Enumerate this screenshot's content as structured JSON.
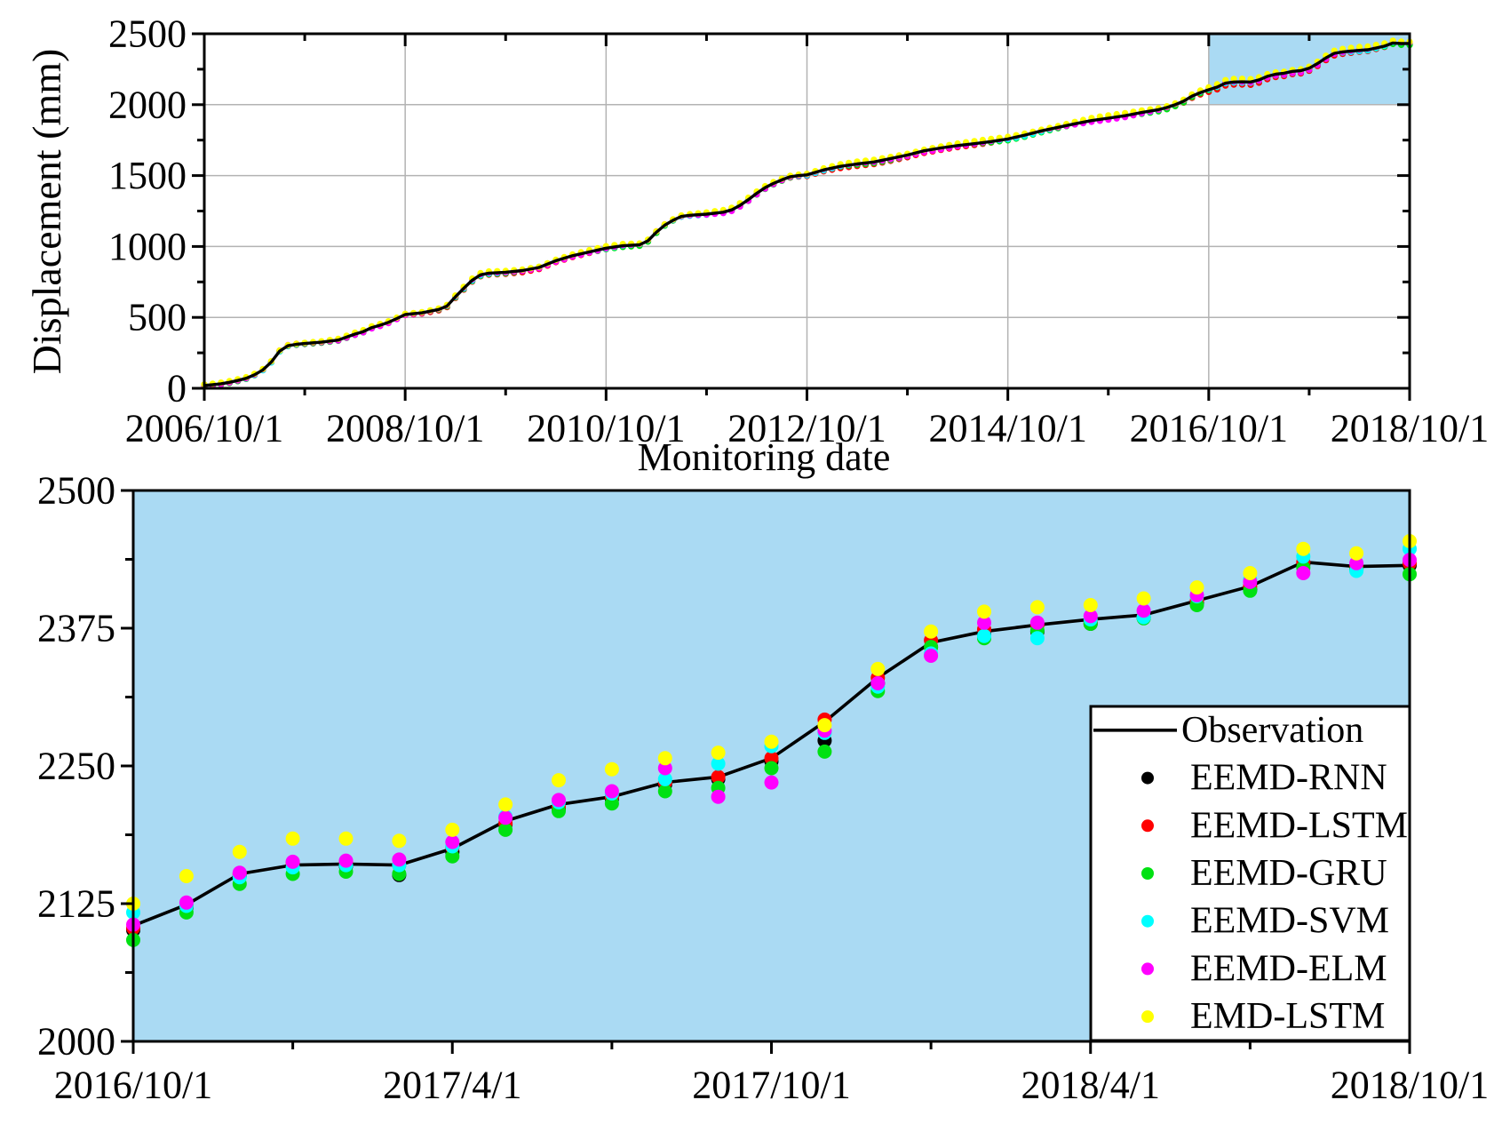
{
  "colors": {
    "background": "#ffffff",
    "highlight_blue": "#aadaf3",
    "axis_black": "#000000",
    "grid_gray": "#b3b3b3",
    "legend_background": "#ffffff",
    "observation": "#000000",
    "eemd_rnn": "#000000",
    "eemd_lstm": "#ff0000",
    "eemd_gru": "#00e112",
    "eemd_svm": "#00ffff",
    "eemd_elm": "#ff00ff",
    "emd_lstm": "#ffff00"
  },
  "legend": {
    "position": "bottom-right-inside",
    "entries": [
      {
        "label": "Observation",
        "marker": "line",
        "color": "#000000"
      },
      {
        "label": "EEMD-RNN",
        "marker": "dot",
        "color": "#000000"
      },
      {
        "label": "EEMD-LSTM",
        "marker": "dot",
        "color": "#ff0000"
      },
      {
        "label": "EEMD-GRU",
        "marker": "dot",
        "color": "#00e112"
      },
      {
        "label": "EEMD-SVM",
        "marker": "dot",
        "color": "#00ffff"
      },
      {
        "label": "EEMD-ELM",
        "marker": "dot",
        "color": "#ff00ff"
      },
      {
        "label": "EMD-LSTM",
        "marker": "dot",
        "color": "#ffff00"
      }
    ]
  },
  "chart_data": [
    {
      "type": "line",
      "panel": "overview",
      "xlabel": "Monitoring date",
      "ylabel": "Displacement (mm)",
      "ylim": [
        0,
        2500
      ],
      "y_ticks": [
        0,
        500,
        1000,
        1500,
        2000,
        2500
      ],
      "y_minor_step": 250,
      "xlim_months": [
        0,
        144
      ],
      "x_tick_months": [
        0,
        24,
        48,
        72,
        96,
        120,
        144
      ],
      "x_tick_labels": [
        "2006/10/1",
        "2008/10/1",
        "2010/10/1",
        "2012/10/1",
        "2014/10/1",
        "2016/10/1",
        "2018/10/1"
      ],
      "x_minor_step_months": 12,
      "grid": true,
      "highlight_window": {
        "x_months": [
          120,
          144
        ],
        "y": [
          2000,
          2500
        ],
        "color": "#aadaf3"
      },
      "observation_knots_month_value": [
        [
          0,
          20
        ],
        [
          1,
          25
        ],
        [
          2,
          32
        ],
        [
          3,
          42
        ],
        [
          4,
          55
        ],
        [
          5,
          70
        ],
        [
          6,
          95
        ],
        [
          7,
          130
        ],
        [
          8,
          185
        ],
        [
          9,
          262
        ],
        [
          10,
          300
        ],
        [
          11,
          310
        ],
        [
          12,
          316
        ],
        [
          14,
          325
        ],
        [
          16,
          340
        ],
        [
          18,
          382
        ],
        [
          19,
          400
        ],
        [
          20,
          428
        ],
        [
          21,
          445
        ],
        [
          22,
          465
        ],
        [
          23,
          492
        ],
        [
          24,
          520
        ],
        [
          26,
          532
        ],
        [
          28,
          556
        ],
        [
          29,
          580
        ],
        [
          30,
          645
        ],
        [
          31,
          705
        ],
        [
          32,
          762
        ],
        [
          33,
          800
        ],
        [
          34,
          812
        ],
        [
          36,
          818
        ],
        [
          38,
          830
        ],
        [
          40,
          852
        ],
        [
          42,
          900
        ],
        [
          44,
          935
        ],
        [
          46,
          962
        ],
        [
          48,
          988
        ],
        [
          50,
          1005
        ],
        [
          52,
          1012
        ],
        [
          53,
          1040
        ],
        [
          54,
          1100
        ],
        [
          55,
          1150
        ],
        [
          56,
          1185
        ],
        [
          57,
          1212
        ],
        [
          58,
          1220
        ],
        [
          60,
          1228
        ],
        [
          62,
          1242
        ],
        [
          63,
          1258
        ],
        [
          64,
          1290
        ],
        [
          65,
          1330
        ],
        [
          66,
          1375
        ],
        [
          67,
          1415
        ],
        [
          68,
          1445
        ],
        [
          69,
          1470
        ],
        [
          70,
          1492
        ],
        [
          71,
          1500
        ],
        [
          72,
          1505
        ],
        [
          74,
          1540
        ],
        [
          76,
          1565
        ],
        [
          78,
          1582
        ],
        [
          80,
          1596
        ],
        [
          82,
          1620
        ],
        [
          84,
          1645
        ],
        [
          86,
          1675
        ],
        [
          88,
          1695
        ],
        [
          90,
          1712
        ],
        [
          92,
          1725
        ],
        [
          94,
          1740
        ],
        [
          96,
          1758
        ],
        [
          98,
          1785
        ],
        [
          100,
          1815
        ],
        [
          102,
          1840
        ],
        [
          104,
          1865
        ],
        [
          106,
          1888
        ],
        [
          108,
          1905
        ],
        [
          110,
          1922
        ],
        [
          112,
          1945
        ],
        [
          114,
          1965
        ],
        [
          115,
          1980
        ],
        [
          116,
          2000
        ],
        [
          117,
          2025
        ],
        [
          118,
          2060
        ],
        [
          119,
          2085
        ],
        [
          120,
          2105
        ],
        [
          121,
          2124
        ],
        [
          122,
          2152
        ],
        [
          123,
          2160
        ],
        [
          124,
          2161
        ],
        [
          125,
          2160
        ],
        [
          126,
          2175
        ],
        [
          127,
          2200
        ],
        [
          128,
          2215
        ],
        [
          129,
          2222
        ],
        [
          130,
          2235
        ],
        [
          131,
          2240
        ],
        [
          132,
          2257
        ],
        [
          133,
          2290
        ],
        [
          134,
          2330
        ],
        [
          135,
          2362
        ],
        [
          136,
          2372
        ],
        [
          137,
          2378
        ],
        [
          138,
          2383
        ],
        [
          139,
          2387
        ],
        [
          140,
          2400
        ],
        [
          141,
          2413
        ],
        [
          142,
          2435
        ],
        [
          143,
          2431
        ],
        [
          144,
          2432
        ]
      ],
      "scatter_monthly": {
        "t_start": 0,
        "t_end": 144,
        "t_step": 1,
        "offset_scale_start": 0.35,
        "offset_scale_end": 1.0,
        "series": [
          {
            "name": "EEMD-RNN",
            "color": "#000000",
            "base": -3,
            "amp": 4,
            "period": 19,
            "phase": 0.6
          },
          {
            "name": "EEMD-LSTM",
            "color": "#ff0000",
            "base": -10,
            "amp": 12,
            "period": 45,
            "phase": 5.8
          },
          {
            "name": "EEMD-GRU",
            "color": "#00e112",
            "base": -7,
            "amp": 7,
            "period": 16,
            "phase": 3.9
          },
          {
            "name": "EEMD-SVM",
            "color": "#00ffff",
            "base": 1,
            "amp": 8,
            "period": 13,
            "phase": 1.1
          },
          {
            "name": "EEMD-ELM",
            "color": "#ff00ff",
            "base": -1,
            "amp": 12,
            "period": 22,
            "phase": 5.2
          },
          {
            "name": "EMD-LSTM",
            "color": "#ffff00",
            "base": 17,
            "amp": 7,
            "period": 15,
            "phase": 0.3
          }
        ]
      }
    },
    {
      "type": "line",
      "panel": "zoom",
      "background": "#aadaf3",
      "ylim": [
        2000,
        2500
      ],
      "y_ticks": [
        2000,
        2125,
        2250,
        2375,
        2500
      ],
      "y_tick_labels": [
        "2000",
        "2125",
        "2250",
        "2375",
        "2500"
      ],
      "y_minor_step": 62.5,
      "xlim_months": [
        0,
        24
      ],
      "x_tick_months": [
        0,
        6,
        12,
        18,
        24
      ],
      "x_tick_labels": [
        "2016/10/1",
        "2017/4/1",
        "2017/10/1",
        "2018/4/1",
        "2018/10/1"
      ],
      "x_minor_step_months": 3,
      "grid": false,
      "observation": {
        "name": "Observation",
        "values": [
          2105,
          2124,
          2152,
          2160,
          2161,
          2160,
          2175,
          2200,
          2215,
          2222,
          2235,
          2240,
          2257,
          2290,
          2330,
          2362,
          2372,
          2378,
          2383,
          2387,
          2400,
          2413,
          2435,
          2431,
          2432
        ]
      },
      "series": [
        {
          "name": "EEMD-RNN",
          "color": "#000000",
          "values": [
            2101,
            2122,
            2150,
            2159,
            2159,
            2151,
            2172,
            2197,
            2211,
            2220,
            2233,
            2238,
            2254,
            2273,
            2325,
            2358,
            2369,
            2372,
            2379,
            2385,
            2398,
            2410,
            2433,
            2429,
            2432
          ]
        },
        {
          "name": "EEMD-LSTM",
          "color": "#ff0000",
          "values": [
            2103,
            2123,
            2152,
            2162,
            2163,
            2160,
            2176,
            2198,
            2213,
            2222,
            2235,
            2240,
            2257,
            2292,
            2330,
            2364,
            2374,
            2378,
            2381,
            2385,
            2400,
            2413,
            2435,
            2431,
            2434
          ]
        },
        {
          "name": "EEMD-GRU",
          "color": "#00e112",
          "values": [
            2092,
            2117,
            2143,
            2152,
            2154,
            2152,
            2168,
            2192,
            2209,
            2216,
            2227,
            2230,
            2248,
            2263,
            2318,
            2358,
            2366,
            2373,
            2379,
            2384,
            2396,
            2409,
            2430,
            2428,
            2424
          ]
        },
        {
          "name": "EEMD-SVM",
          "color": "#00ffff",
          "values": [
            2117,
            2123,
            2149,
            2158,
            2160,
            2160,
            2177,
            2204,
            2217,
            2225,
            2238,
            2252,
            2268,
            2280,
            2322,
            2352,
            2368,
            2366,
            2383,
            2385,
            2404,
            2419,
            2440,
            2427,
            2447
          ]
        },
        {
          "name": "EEMD-ELM",
          "color": "#ff00ff",
          "values": [
            2106,
            2126,
            2153,
            2163,
            2164,
            2165,
            2181,
            2203,
            2219,
            2227,
            2248,
            2222,
            2235,
            2282,
            2325,
            2350,
            2380,
            2380,
            2386,
            2391,
            2405,
            2417,
            2425,
            2434,
            2437
          ]
        },
        {
          "name": "EMD-LSTM",
          "color": "#ffff00",
          "values": [
            2125,
            2150,
            2172,
            2184,
            2184,
            2182,
            2192,
            2215,
            2237,
            2247,
            2257,
            2262,
            2272,
            2287,
            2338,
            2372,
            2390,
            2394,
            2396,
            2402,
            2412,
            2425,
            2447,
            2443,
            2454
          ]
        }
      ]
    }
  ]
}
